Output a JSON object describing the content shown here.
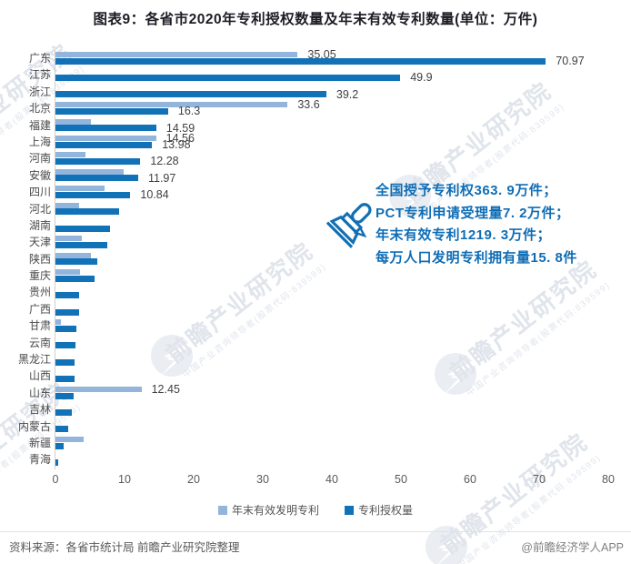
{
  "title": "图表9：各省市2020年专利授权数量及年末有效专利数量(单位：万件)",
  "colors": {
    "valid_patents": "#93b5dc",
    "granted_patents": "#1172b8",
    "annotation": "#0f6db5"
  },
  "chart_data": {
    "type": "bar",
    "orientation": "horizontal",
    "unit": "万件",
    "title": "图表9：各省市2020年专利授权数量及年末有效专利数量(单位：万件)",
    "categories": [
      "广东",
      "江苏",
      "浙江",
      "北京",
      "福建",
      "上海",
      "河南",
      "安徽",
      "四川",
      "河北",
      "湖南",
      "天津",
      "陕西",
      "重庆",
      "贵州",
      "广西",
      "甘肃",
      "云南",
      "黑龙江",
      "山西",
      "山东",
      "吉林",
      "内蒙古",
      "新疆",
      "青海"
    ],
    "series": [
      {
        "name": "年末有效发明专利",
        "color": "#93b5dc",
        "values": [
          35.05,
          null,
          null,
          33.6,
          5.1,
          14.56,
          4.3,
          9.9,
          7.1,
          3.4,
          null,
          3.8,
          5.1,
          3.6,
          null,
          null,
          0.8,
          null,
          null,
          null,
          12.45,
          null,
          null,
          4.1,
          null
        ],
        "labels": [
          "35.05",
          null,
          null,
          "33.6",
          null,
          "14.56",
          null,
          null,
          null,
          null,
          null,
          null,
          null,
          null,
          null,
          null,
          null,
          null,
          null,
          null,
          "12.45",
          null,
          null,
          null,
          null
        ]
      },
      {
        "name": "专利授权量",
        "color": "#1172b8",
        "values": [
          70.97,
          49.9,
          39.2,
          16.3,
          14.59,
          13.98,
          12.28,
          11.97,
          10.84,
          9.2,
          7.9,
          7.5,
          6.1,
          5.6,
          3.4,
          3.4,
          3.0,
          2.9,
          2.8,
          2.7,
          2.6,
          2.4,
          1.8,
          1.2,
          0.4
        ],
        "labels": [
          "70.97",
          "49.9",
          "39.2",
          "16.3",
          "14.59",
          "13.98",
          "12.28",
          "11.97",
          "10.84",
          null,
          null,
          null,
          null,
          null,
          null,
          null,
          null,
          null,
          null,
          null,
          null,
          null,
          null,
          null,
          null
        ]
      }
    ],
    "x_ticks": [
      0,
      10,
      20,
      30,
      40,
      50,
      60,
      70,
      80
    ],
    "xlim": [
      0,
      80
    ],
    "grid": false,
    "legend_position": "bottom"
  },
  "annotation": {
    "lines": [
      "全国授予专利权363. 9万件；",
      "PCT专利申请受理量7. 2万件；",
      "年末有效专利1219. 3万件；",
      "每万人口发明专利拥有量15. 8件"
    ]
  },
  "legend": [
    {
      "label": "年末有效发明专利",
      "color": "#93b5dc"
    },
    {
      "label": "专利授权量",
      "color": "#1172b8"
    }
  ],
  "footer": {
    "source": "资料来源：各省市统计局 前瞻产业研究院整理",
    "credit": "@前瞻经济学人APP"
  },
  "watermark": {
    "main": "前瞻产业研究院",
    "sub": "中国产业咨询领导者(股票代码:839599)"
  }
}
